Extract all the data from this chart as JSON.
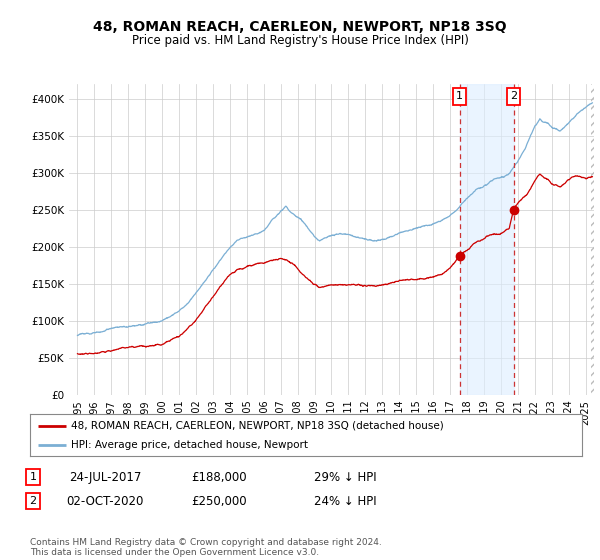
{
  "title": "48, ROMAN REACH, CAERLEON, NEWPORT, NP18 3SQ",
  "subtitle": "Price paid vs. HM Land Registry's House Price Index (HPI)",
  "ylabel_ticks": [
    "£0",
    "£50K",
    "£100K",
    "£150K",
    "£200K",
    "£250K",
    "£300K",
    "£350K",
    "£400K"
  ],
  "ytick_vals": [
    0,
    50000,
    100000,
    150000,
    200000,
    250000,
    300000,
    350000,
    400000
  ],
  "ylim": [
    0,
    420000
  ],
  "xlim_start": 1994.5,
  "xlim_end": 2025.5,
  "hpi_color": "#7bafd4",
  "price_color": "#cc0000",
  "marker1_x": 2017.56,
  "marker1_y": 188000,
  "marker1_label": "1",
  "marker2_x": 2020.75,
  "marker2_y": 250000,
  "marker2_label": "2",
  "fill_color": "#ddeeff",
  "fill_alpha": 0.5,
  "legend_line1": "48, ROMAN REACH, CAERLEON, NEWPORT, NP18 3SQ (detached house)",
  "legend_line2": "HPI: Average price, detached house, Newport",
  "annotation1_num": "1",
  "annotation1_date": "24-JUL-2017",
  "annotation1_price": "£188,000",
  "annotation1_pct": "29% ↓ HPI",
  "annotation2_num": "2",
  "annotation2_date": "02-OCT-2020",
  "annotation2_price": "£250,000",
  "annotation2_pct": "24% ↓ HPI",
  "footer": "Contains HM Land Registry data © Crown copyright and database right 2024.\nThis data is licensed under the Open Government Licence v3.0.",
  "background_color": "#ffffff",
  "grid_color": "#cccccc"
}
